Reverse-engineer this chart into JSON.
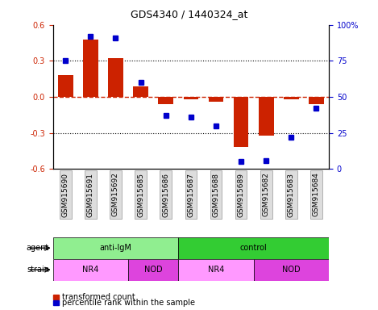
{
  "title": "GDS4340 / 1440324_at",
  "samples": [
    "GSM915690",
    "GSM915691",
    "GSM915692",
    "GSM915685",
    "GSM915686",
    "GSM915687",
    "GSM915688",
    "GSM915689",
    "GSM915682",
    "GSM915683",
    "GSM915684"
  ],
  "red_bars": [
    0.18,
    0.48,
    0.32,
    0.09,
    -0.06,
    -0.02,
    -0.04,
    -0.42,
    -0.32,
    -0.02,
    -0.06
  ],
  "blue_dots": [
    75,
    92,
    91,
    60,
    37,
    36,
    30,
    5,
    6,
    22,
    42
  ],
  "ylim_left": [
    -0.6,
    0.6
  ],
  "ylim_right": [
    0,
    100
  ],
  "yticks_left": [
    -0.6,
    -0.3,
    0.0,
    0.3,
    0.6
  ],
  "yticks_right": [
    0,
    25,
    50,
    75,
    100
  ],
  "ytick_labels_right": [
    "0",
    "25",
    "50",
    "75",
    "100%"
  ],
  "hlines_dotted": [
    -0.3,
    0.3
  ],
  "hline_dashed": 0.0,
  "agent_groups": [
    {
      "label": "anti-IgM",
      "start": 0,
      "end": 5,
      "color": "#90EE90"
    },
    {
      "label": "control",
      "start": 5,
      "end": 11,
      "color": "#33CC33"
    }
  ],
  "strain_groups": [
    {
      "label": "NR4",
      "start": 0,
      "end": 3,
      "color": "#FF99FF"
    },
    {
      "label": "NOD",
      "start": 3,
      "end": 5,
      "color": "#DD44DD"
    },
    {
      "label": "NR4",
      "start": 5,
      "end": 8,
      "color": "#FF99FF"
    },
    {
      "label": "NOD",
      "start": 8,
      "end": 11,
      "color": "#DD44DD"
    }
  ],
  "bar_color": "#CC2200",
  "dot_color": "#0000CC",
  "zero_line_color": "#CC2200",
  "dotted_line_color": "#000000",
  "legend_red_label": "transformed count",
  "legend_blue_label": "percentile rank within the sample",
  "agent_label": "agent",
  "strain_label": "strain"
}
